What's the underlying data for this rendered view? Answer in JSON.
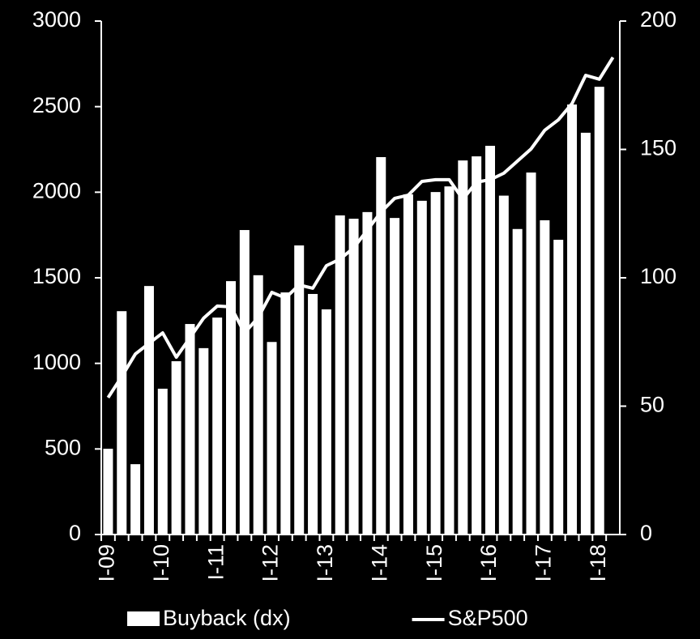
{
  "chart_data": {
    "type": "bar",
    "categories": [
      "I-09",
      null,
      null,
      null,
      "I-10",
      null,
      null,
      null,
      "I-11",
      null,
      null,
      null,
      "I-12",
      null,
      null,
      null,
      "I-13",
      null,
      null,
      null,
      "I-14",
      null,
      null,
      null,
      "I-15",
      null,
      null,
      null,
      "I-16",
      null,
      null,
      null,
      "I-17",
      null,
      null,
      null,
      "I-18",
      null
    ],
    "series": [
      {
        "name": "Buyback (dx)",
        "type": "bar",
        "axis": "y2",
        "color": "#ffffff",
        "values": [
          33.4,
          87,
          27.4,
          96.8,
          56.8,
          67.5,
          82,
          72.6,
          84.5,
          98.7,
          118.6,
          101,
          75,
          94.3,
          112.6,
          93.7,
          87.7,
          124.3,
          123,
          125.6,
          147,
          123.3,
          132.5,
          130,
          133.4,
          135.6,
          145.7,
          147.3,
          151.4,
          132,
          119,
          141,
          122.4,
          114.8,
          167.5,
          156.5,
          174.4,
          null
        ]
      },
      {
        "name": "S&P500",
        "type": "line",
        "color": "#ffffff",
        "values": [
          800,
          923,
          1055,
          1117,
          1178,
          1036,
          1150,
          1264,
          1335,
          1330,
          1178,
          1268,
          1415,
          1382,
          1458,
          1439,
          1571,
          1609,
          1675,
          1779,
          1884,
          1964,
          1983,
          2063,
          2073,
          2073,
          1959,
          2059,
          2073,
          2111,
          2182,
          2253,
          2362,
          2423,
          2518,
          2683,
          2660,
          2788
        ]
      }
    ],
    "ylim": [
      0,
      3000
    ],
    "yticks": [
      0,
      500,
      1000,
      1500,
      2000,
      2500,
      3000
    ],
    "y2lim": [
      0,
      200
    ],
    "y2ticks": [
      0,
      50,
      100,
      150,
      200
    ],
    "grid": false,
    "legend": "bottom"
  }
}
